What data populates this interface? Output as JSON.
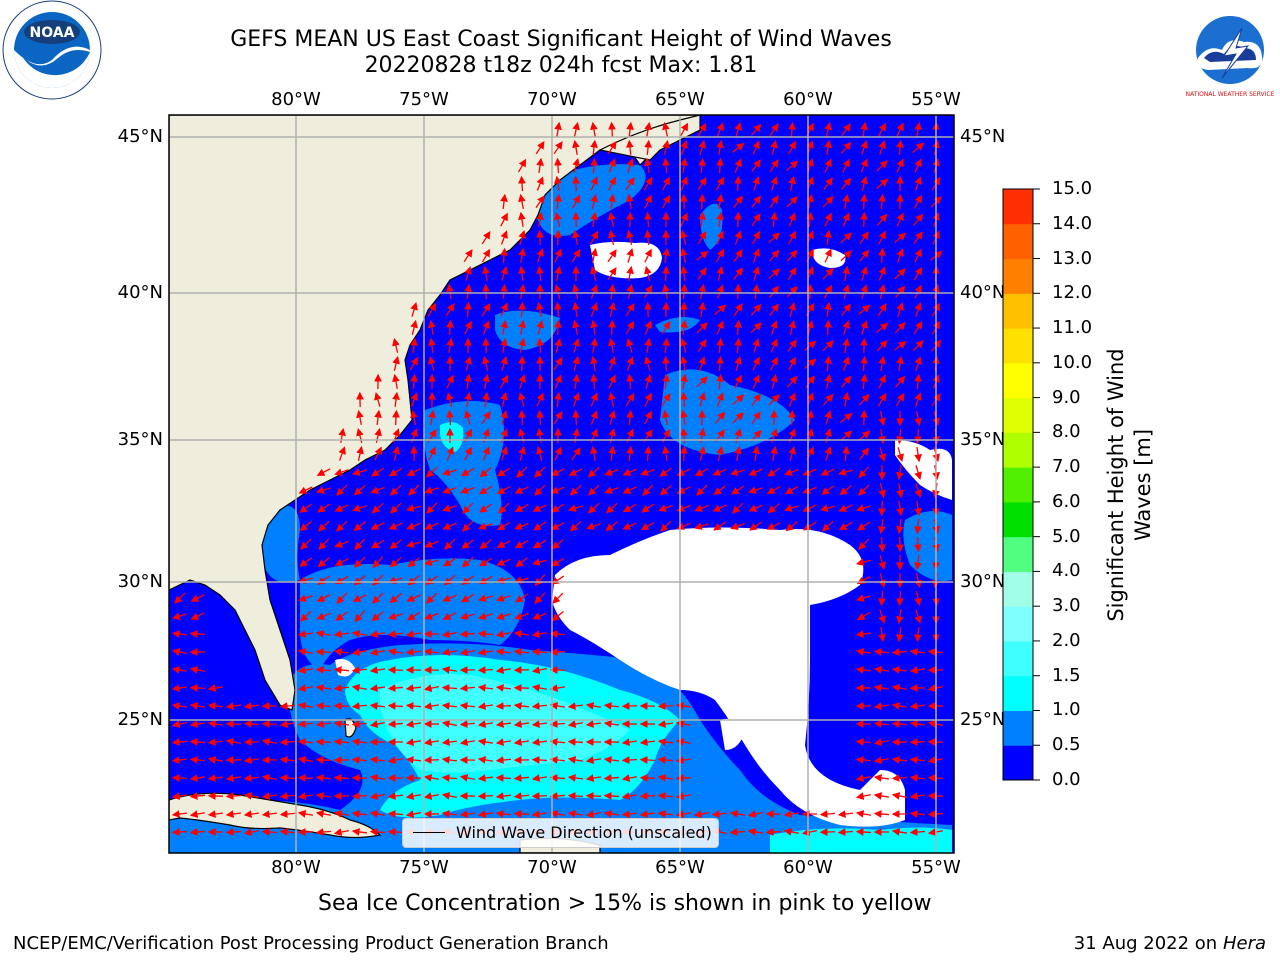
{
  "title_line1": "GEFS MEAN US East Coast Significant Height of Wind Waves",
  "title_line2": "20220828 t18z 024h fcst   Max: 1.81",
  "lon_labels": [
    "80°W",
    "75°W",
    "70°W",
    "65°W",
    "60°W",
    "55°W"
  ],
  "lat_labels": [
    "45°N",
    "40°N",
    "35°N",
    "30°N",
    "25°N"
  ],
  "colorbar": {
    "label_line1": "Significant Height of Wind",
    "label_line2": "Waves [m]",
    "ticks": [
      "0.0",
      "0.5",
      "1.0",
      "1.5",
      "2.0",
      "3.0",
      "4.0",
      "5.0",
      "6.0",
      "7.0",
      "8.0",
      "9.0",
      "10.0",
      "11.0",
      "12.0",
      "13.0",
      "14.0",
      "15.0"
    ],
    "colors": [
      "#0000ff",
      "#0080ff",
      "#00ffff",
      "#40ffff",
      "#80ffff",
      "#a0ffe6",
      "#50ff80",
      "#00e000",
      "#50f000",
      "#b0ff00",
      "#e0ff00",
      "#ffff00",
      "#ffe000",
      "#ffc000",
      "#ff8000",
      "#ff6000",
      "#ff3000",
      "#ff0000"
    ]
  },
  "legend_label": "Wind Wave Direction (unscaled)",
  "ice_note": "Sea Ice Concentration > 15% is shown in pink to yellow",
  "footer_left": "NCEP/EMC/Verification Post Processing Product Generation Branch",
  "footer_right_date": "31 Aug 2022 on",
  "footer_right_machine": "Hera",
  "logos": {
    "left": "noaa-logo",
    "right": "national-weather-service-logo",
    "left_text": "NOAA",
    "right_text": "NATIONAL WEATHER SERVICE"
  }
}
